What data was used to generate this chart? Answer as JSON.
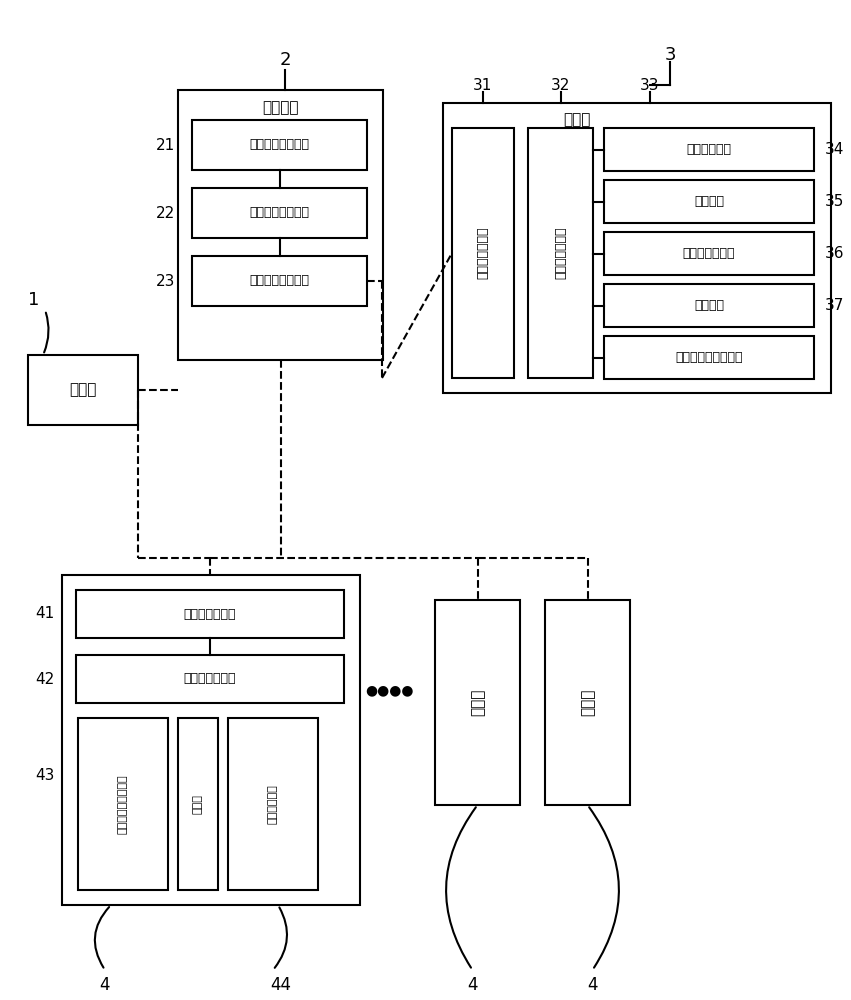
{
  "bg_color": "#ffffff",
  "line_color": "#000000",
  "lw": 1.5,
  "box_texts": {
    "user": "用户端",
    "server_title": "服务器端",
    "unit21": "还车异常处理单元",
    "unit22": "服务器端处理单元",
    "unit23": "服务器端通信单元",
    "vehicle_title": "车载端",
    "unit31": "车载端通信单元",
    "unit32": "车载端处理单元",
    "unit33": "感应接收单元",
    "unit34": "计费单元",
    "unit35": "充电桩接口单元",
    "unit36": "锁定单元",
    "unit37": "车载端状态检测单元",
    "charge_comm": "充电桩通信单元",
    "charge_proc": "充电桩处理单元",
    "unit43_detect": "充电桩状态检测单元",
    "unit43_pile": "充电桩",
    "unit43_sense": "感应发射单元",
    "charge_pile": "充电桩"
  }
}
